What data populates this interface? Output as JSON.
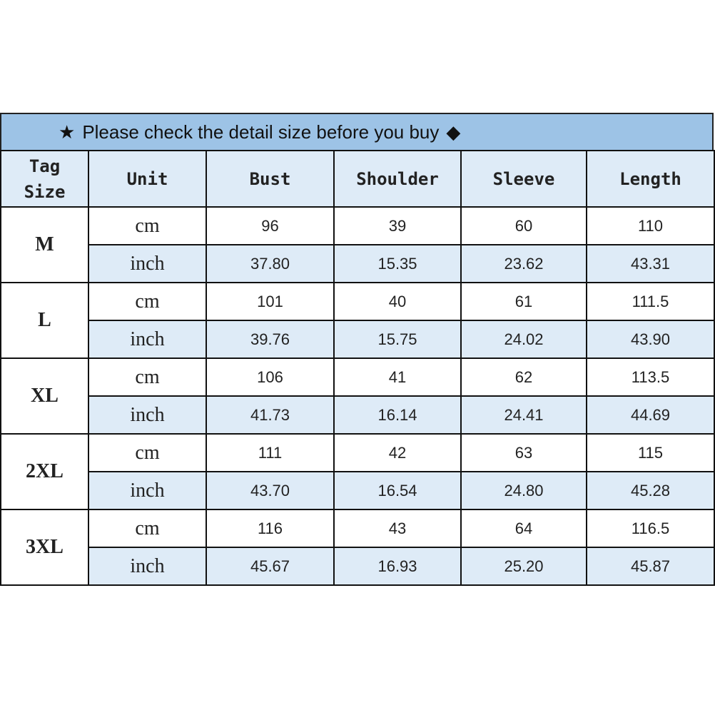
{
  "title": {
    "prefix_icon": "star",
    "text": "Please check the detail size before you buy",
    "suffix_icon": "diamond"
  },
  "headers": [
    "Tag Size",
    "Unit",
    "Bust",
    "Shoulder",
    "Sleeve",
    "Length"
  ],
  "colors": {
    "title_bg": "#9dc3e6",
    "header_bg": "#deebf7",
    "inch_row_bg": "#deebf7"
  },
  "rows": [
    {
      "size": "M",
      "cm": [
        "96",
        "39",
        "60",
        "110"
      ],
      "inch": [
        "37.80",
        "15.35",
        "23.62",
        "43.31"
      ]
    },
    {
      "size": "L",
      "cm": [
        "101",
        "40",
        "61",
        "111.5"
      ],
      "inch": [
        "39.76",
        "15.75",
        "24.02",
        "43.90"
      ]
    },
    {
      "size": "XL",
      "cm": [
        "106",
        "41",
        "62",
        "113.5"
      ],
      "inch": [
        "41.73",
        "16.14",
        "24.41",
        "44.69"
      ]
    },
    {
      "size": "2XL",
      "cm": [
        "111",
        "42",
        "63",
        "115"
      ],
      "inch": [
        "43.70",
        "16.54",
        "24.80",
        "45.28"
      ]
    },
    {
      "size": "3XL",
      "cm": [
        "116",
        "43",
        "64",
        "116.5"
      ],
      "inch": [
        "45.67",
        "16.93",
        "25.20",
        "45.87"
      ]
    }
  ],
  "units": {
    "cm": "cm",
    "inch": "inch"
  }
}
